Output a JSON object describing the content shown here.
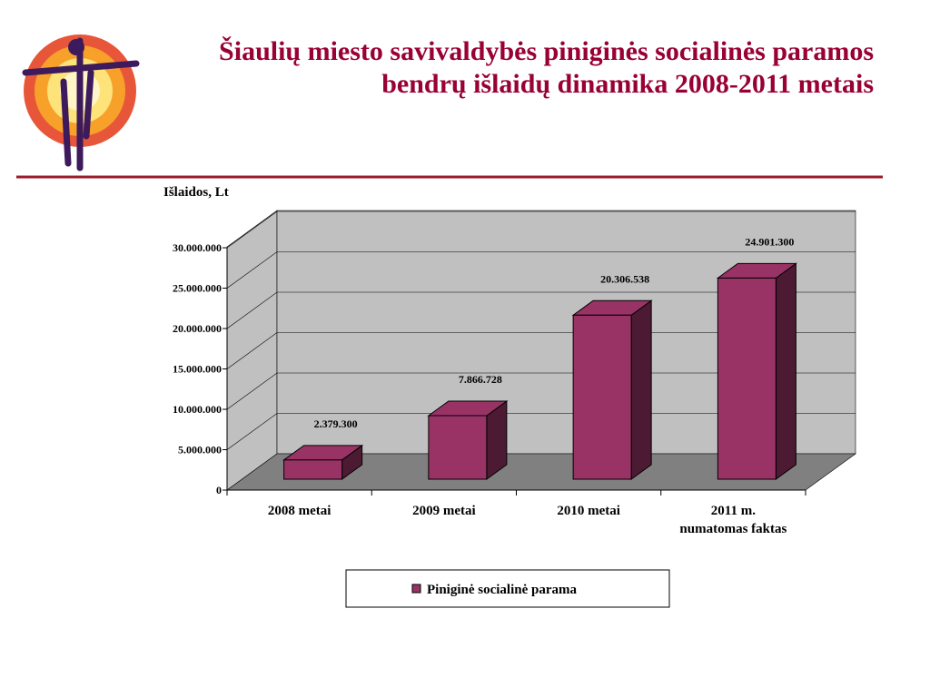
{
  "chart_data": {
    "type": "bar3d",
    "title": "Šiaulių miesto savivaldybės piniginės socialinės paramos bendrų išlaidų dinamika 2008-2011 metais",
    "y_label": "Išlaidos, Lt",
    "categories": [
      "2008 metai",
      "2009 metai",
      "2010 metai",
      "2011 m.\nnumatomas faktas"
    ],
    "series": [
      {
        "name": "Piniginė socialinė parama",
        "color": "#993366",
        "values": [
          2379300,
          7866728,
          20306538,
          24901300
        ],
        "value_labels": [
          "2.379.300",
          "7.866.728",
          "20.306.538",
          "24.901.300"
        ]
      }
    ],
    "ylim": [
      0,
      30000000
    ],
    "yticks": [
      0,
      {
        "value": 5000000,
        "label": "5.000.000"
      },
      {
        "value": 10000000,
        "label": "10.000.000"
      },
      {
        "value": 15000000,
        "label": "15.000.000"
      },
      {
        "value": 20000000,
        "label": "20.000.000"
      },
      {
        "value": 25000000,
        "label": "25.000.000"
      },
      {
        "value": 30000000,
        "label": "30.000.000"
      }
    ],
    "grid": true,
    "legend": "bottom"
  }
}
